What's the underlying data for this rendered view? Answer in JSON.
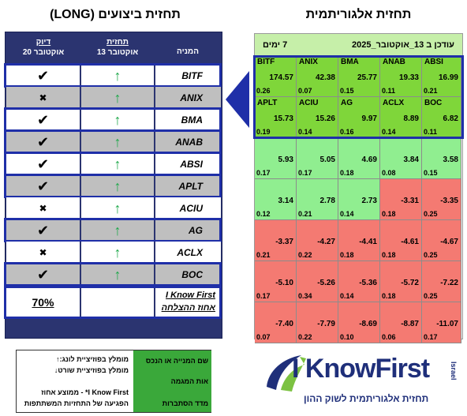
{
  "titles": {
    "right": "תחזית אלגוריתמית",
    "left": "תחזית ביצועים (LONG)"
  },
  "perf_table": {
    "col_name": "המניה",
    "col_forecast": "תחזית",
    "col_forecast_date": "13 אוקטובר",
    "col_accuracy": "דיוק",
    "col_accuracy_date": "20 אוקטובר",
    "rows": [
      {
        "name": "BITF",
        "forecast": "↑",
        "result": "✔"
      },
      {
        "name": "ANIX",
        "forecast": "↑",
        "result": "✖"
      },
      {
        "name": "BMA",
        "forecast": "↑",
        "result": "✔"
      },
      {
        "name": "ANAB",
        "forecast": "↑",
        "result": "✔"
      },
      {
        "name": "ABSI",
        "forecast": "↑",
        "result": "✔"
      },
      {
        "name": "APLT",
        "forecast": "↑",
        "result": "✔"
      },
      {
        "name": "ACIU",
        "forecast": "↑",
        "result": "✖"
      },
      {
        "name": "AG",
        "forecast": "↑",
        "result": "✔"
      },
      {
        "name": "ACLX",
        "forecast": "↑",
        "result": "✖"
      },
      {
        "name": "BOC",
        "forecast": "↑",
        "result": "✔"
      }
    ],
    "total_label_1": "I Know First",
    "total_label_2": "אחוז ההצלחה",
    "total_value": "70%"
  },
  "heatmap": {
    "header_updated": "עודכן ב 13_אוקטובר_2025",
    "header_period": "7 ימים"
  },
  "chart_data": {
    "type": "heatmap",
    "title": "תחזית אלגוריתמית",
    "columns": 5,
    "cells": [
      {
        "ticker": "BITF",
        "signal": 174.57,
        "predictability": 0.26
      },
      {
        "ticker": "ANIX",
        "signal": 42.38,
        "predictability": 0.07
      },
      {
        "ticker": "BMA",
        "signal": 25.77,
        "predictability": 0.15
      },
      {
        "ticker": "ANAB",
        "signal": 19.33,
        "predictability": 0.11
      },
      {
        "ticker": "ABSI",
        "signal": 16.99,
        "predictability": 0.21
      },
      {
        "ticker": "APLT",
        "signal": 15.73,
        "predictability": 0.19
      },
      {
        "ticker": "ACIU",
        "signal": 15.26,
        "predictability": 0.14
      },
      {
        "ticker": "AG",
        "signal": 9.97,
        "predictability": 0.16
      },
      {
        "ticker": "ACLX",
        "signal": 8.89,
        "predictability": 0.14
      },
      {
        "ticker": "BOC",
        "signal": 6.82,
        "predictability": 0.11
      },
      {
        "ticker": "",
        "signal": 5.93,
        "predictability": 0.17
      },
      {
        "ticker": "",
        "signal": 5.05,
        "predictability": 0.17
      },
      {
        "ticker": "",
        "signal": 4.69,
        "predictability": 0.18
      },
      {
        "ticker": "",
        "signal": 3.84,
        "predictability": 0.08
      },
      {
        "ticker": "",
        "signal": 3.58,
        "predictability": 0.15
      },
      {
        "ticker": "",
        "signal": 3.14,
        "predictability": 0.12
      },
      {
        "ticker": "",
        "signal": 2.78,
        "predictability": 0.21
      },
      {
        "ticker": "",
        "signal": 2.73,
        "predictability": 0.14
      },
      {
        "ticker": "",
        "signal": -3.31,
        "predictability": 0.18
      },
      {
        "ticker": "",
        "signal": -3.35,
        "predictability": 0.25
      },
      {
        "ticker": "",
        "signal": -3.37,
        "predictability": 0.21
      },
      {
        "ticker": "",
        "signal": -4.27,
        "predictability": 0.22
      },
      {
        "ticker": "",
        "signal": -4.41,
        "predictability": 0.18
      },
      {
        "ticker": "",
        "signal": -4.61,
        "predictability": 0.18
      },
      {
        "ticker": "",
        "signal": -4.67,
        "predictability": 0.25
      },
      {
        "ticker": "",
        "signal": -5.1,
        "predictability": 0.17
      },
      {
        "ticker": "",
        "signal": -5.26,
        "predictability": 0.34
      },
      {
        "ticker": "",
        "signal": -5.36,
        "predictability": 0.14
      },
      {
        "ticker": "",
        "signal": -5.72,
        "predictability": 0.18
      },
      {
        "ticker": "",
        "signal": -7.22,
        "predictability": 0.25
      },
      {
        "ticker": "",
        "signal": -7.4,
        "predictability": 0.07
      },
      {
        "ticker": "",
        "signal": -7.79,
        "predictability": 0.22
      },
      {
        "ticker": "",
        "signal": -8.69,
        "predictability": 0.1
      },
      {
        "ticker": "",
        "signal": -8.87,
        "predictability": 0.06
      },
      {
        "ticker": "",
        "signal": -11.07,
        "predictability": 0.17
      }
    ],
    "colors": {
      "top": "#7fd63a",
      "positive": "#90ee90",
      "negative": "#f47a72"
    }
  },
  "legend": {
    "green_1": "שם המנייה או הנכס",
    "green_2": "אות המגמה",
    "green_3": "מדד הסתברות",
    "up_text": "מומלץ בפוזיציית לונג:↑",
    "down_text": "מומלץ בפוזיציית שורט↓",
    "accuracy_note": "I Know First* - ממוצע אחוז",
    "accuracy_note_2": "הפגיעה של התחזיות המשתתפות"
  },
  "logo": {
    "brand_part1": "I Know",
    "brand_part2": "First",
    "country": "Israel",
    "tagline": "תחזית אלגוריתמית לשוק ההון"
  }
}
